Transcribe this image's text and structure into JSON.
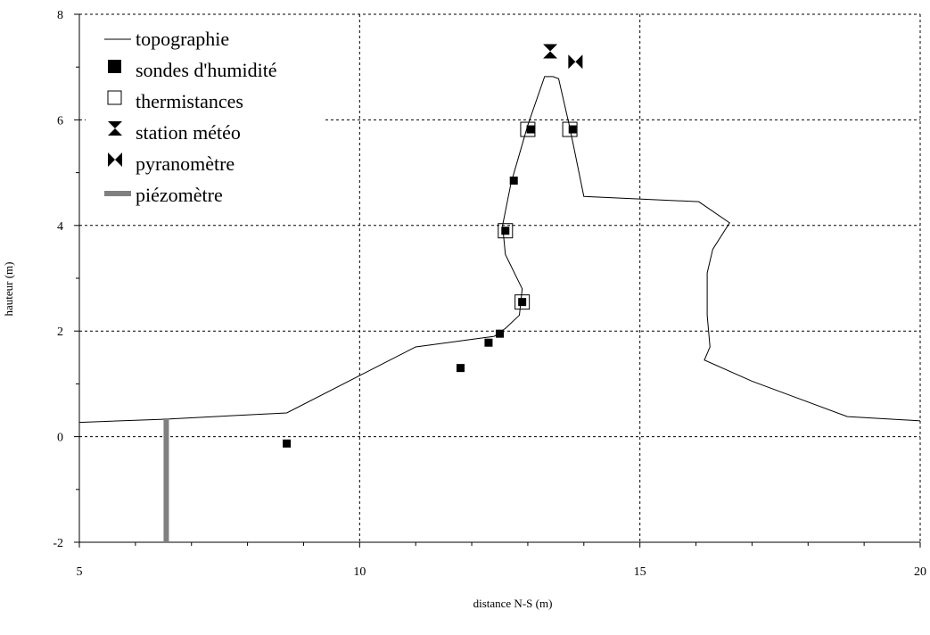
{
  "chart_data": {
    "type": "scatter",
    "xlabel": "distance N-S (m)",
    "ylabel": "hauteur (m)",
    "xlim": [
      5,
      20
    ],
    "ylim": [
      -2,
      8
    ],
    "x_ticks": [
      5,
      10,
      15,
      20
    ],
    "y_ticks": [
      -2,
      0,
      2,
      4,
      6,
      8
    ],
    "x_tick_labels": [
      "5",
      "10",
      "15",
      "20"
    ],
    "y_tick_labels": [
      "-2",
      "0",
      "2",
      "4",
      "6",
      "8"
    ],
    "x_minor_step": 1,
    "y_minor_step": 1,
    "grid": true,
    "legend_position": "top-left",
    "series": [
      {
        "name": "topographie",
        "kind": "line",
        "color": "#000000",
        "points": [
          [
            5.0,
            0.27
          ],
          [
            6.5,
            0.33
          ],
          [
            8.7,
            0.45
          ],
          [
            11.0,
            1.7
          ],
          [
            12.4,
            1.9
          ],
          [
            12.6,
            2.05
          ],
          [
            12.85,
            2.3
          ],
          [
            12.9,
            2.8
          ],
          [
            12.6,
            3.45
          ],
          [
            12.55,
            4.0
          ],
          [
            12.7,
            4.8
          ],
          [
            13.0,
            5.9
          ],
          [
            13.3,
            6.82
          ],
          [
            13.45,
            6.82
          ],
          [
            13.55,
            6.78
          ],
          [
            13.75,
            5.85
          ],
          [
            14.0,
            4.55
          ],
          [
            16.05,
            4.45
          ],
          [
            16.6,
            4.05
          ],
          [
            16.3,
            3.55
          ],
          [
            16.2,
            3.1
          ],
          [
            16.2,
            2.3
          ],
          [
            16.25,
            1.7
          ],
          [
            16.15,
            1.45
          ],
          [
            17.0,
            1.05
          ],
          [
            18.7,
            0.38
          ],
          [
            20.0,
            0.3
          ]
        ]
      },
      {
        "name": "sondes d'humidité",
        "kind": "filled-square",
        "color": "#000000",
        "points": [
          [
            8.7,
            -0.13
          ],
          [
            11.8,
            1.3
          ],
          [
            12.3,
            1.78
          ],
          [
            12.5,
            1.95
          ],
          [
            12.9,
            2.55
          ],
          [
            12.6,
            3.9
          ],
          [
            12.75,
            4.85
          ],
          [
            13.05,
            5.82
          ],
          [
            13.8,
            5.82
          ]
        ]
      },
      {
        "name": "thermistances",
        "kind": "open-square",
        "color": "#000000",
        "points": [
          [
            12.9,
            2.55
          ],
          [
            12.6,
            3.9
          ],
          [
            13.0,
            5.82
          ],
          [
            13.75,
            5.82
          ]
        ]
      },
      {
        "name": "station météo",
        "kind": "hourglass",
        "color": "#000000",
        "points": [
          [
            13.4,
            7.3
          ]
        ]
      },
      {
        "name": "pyranomètre",
        "kind": "bowtie",
        "color": "#000000",
        "points": [
          [
            13.85,
            7.1
          ]
        ]
      },
      {
        "name": "piézomètre",
        "kind": "thick-bar",
        "color": "#808080",
        "points": [
          [
            6.55,
            0.35
          ],
          [
            6.55,
            -2.0
          ]
        ]
      }
    ]
  }
}
